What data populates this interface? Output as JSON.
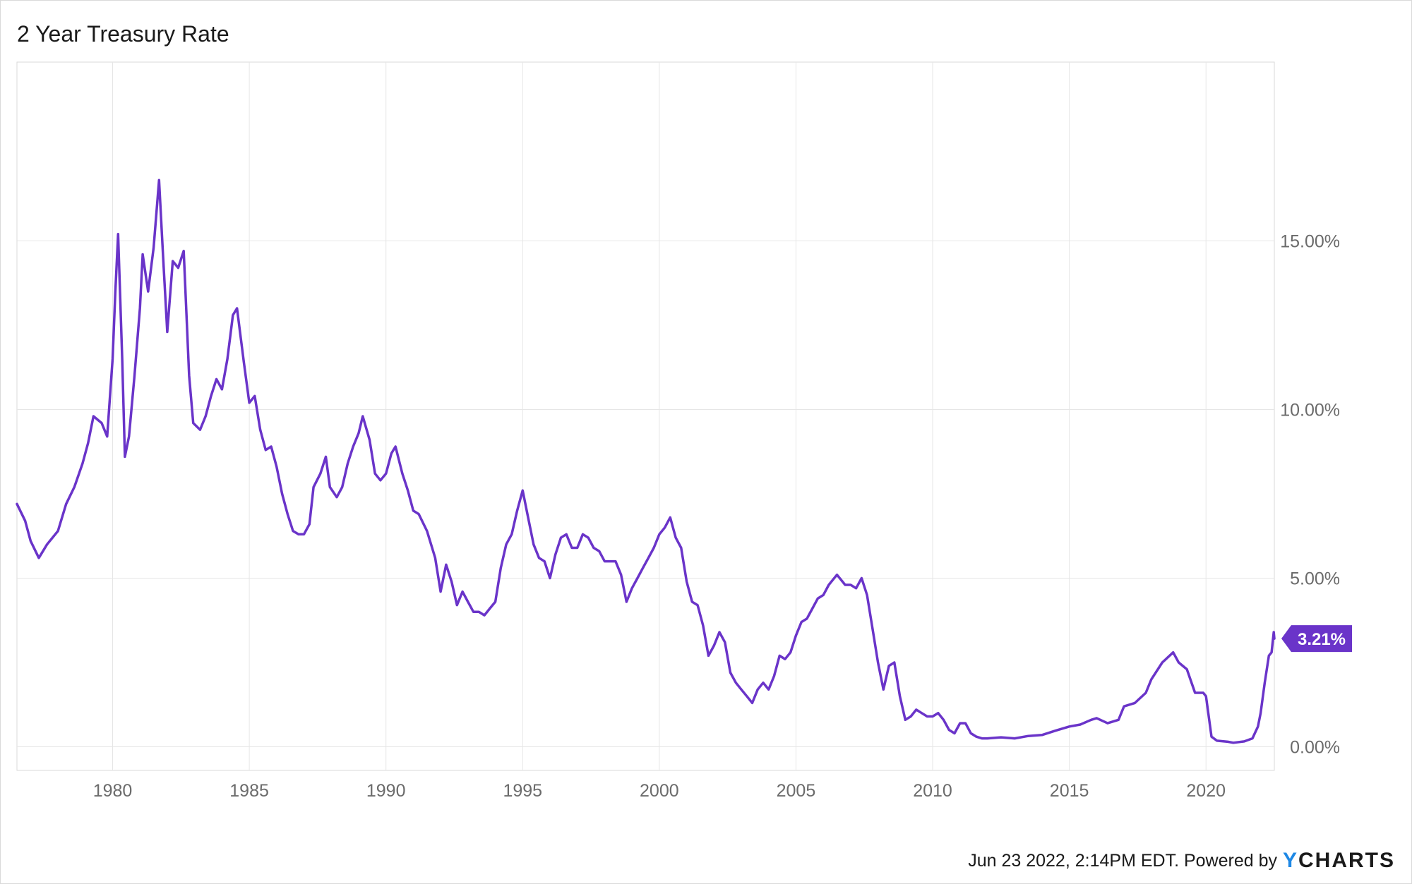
{
  "title": "2 Year Treasury Rate",
  "footer": {
    "text": "Jun 23 2022, 2:14PM EDT. Powered by",
    "logo_y": "Y",
    "logo_rest": "CHARTS"
  },
  "colors": {
    "line": "#6a34c9",
    "flag": "#6a34c9",
    "grid": "#e6e6e6"
  },
  "chart_data": {
    "type": "line",
    "title": "2 Year Treasury Rate",
    "xlabel": "",
    "ylabel": "",
    "xlim": [
      1976.5,
      2022.5
    ],
    "ylim": [
      -0.7,
      20.3
    ],
    "x_ticks": [
      1980,
      1985,
      1990,
      1995,
      2000,
      2005,
      2010,
      2015,
      2020
    ],
    "x_tick_labels": [
      "1980",
      "1985",
      "1990",
      "1995",
      "2000",
      "2005",
      "2010",
      "2015",
      "2020"
    ],
    "y_ticks": [
      0,
      5,
      10,
      15
    ],
    "y_tick_labels": [
      "0.00%",
      "5.00%",
      "10.00%",
      "15.00%"
    ],
    "grid": true,
    "last_value_label": "3.21%",
    "series": [
      {
        "values": [
          [
            1976.5,
            7.2
          ],
          [
            1976.8,
            6.7
          ],
          [
            1977.0,
            6.1
          ],
          [
            1977.3,
            5.6
          ],
          [
            1977.6,
            6.0
          ],
          [
            1978.0,
            6.4
          ],
          [
            1978.3,
            7.2
          ],
          [
            1978.6,
            7.7
          ],
          [
            1978.9,
            8.4
          ],
          [
            1979.1,
            9.0
          ],
          [
            1979.3,
            9.8
          ],
          [
            1979.6,
            9.6
          ],
          [
            1979.8,
            9.2
          ],
          [
            1980.0,
            11.5
          ],
          [
            1980.1,
            13.5
          ],
          [
            1980.2,
            15.2
          ],
          [
            1980.35,
            11.5
          ],
          [
            1980.45,
            8.6
          ],
          [
            1980.6,
            9.2
          ],
          [
            1980.8,
            11.0
          ],
          [
            1981.0,
            13.0
          ],
          [
            1981.1,
            14.6
          ],
          [
            1981.3,
            13.5
          ],
          [
            1981.5,
            14.8
          ],
          [
            1981.7,
            16.8
          ],
          [
            1981.85,
            14.5
          ],
          [
            1982.0,
            12.3
          ],
          [
            1982.2,
            14.4
          ],
          [
            1982.4,
            14.2
          ],
          [
            1982.6,
            14.7
          ],
          [
            1982.8,
            11.0
          ],
          [
            1982.95,
            9.6
          ],
          [
            1983.2,
            9.4
          ],
          [
            1983.4,
            9.8
          ],
          [
            1983.6,
            10.4
          ],
          [
            1983.8,
            10.9
          ],
          [
            1984.0,
            10.6
          ],
          [
            1984.2,
            11.5
          ],
          [
            1984.4,
            12.8
          ],
          [
            1984.55,
            13.0
          ],
          [
            1984.8,
            11.4
          ],
          [
            1985.0,
            10.2
          ],
          [
            1985.2,
            10.4
          ],
          [
            1985.4,
            9.4
          ],
          [
            1985.6,
            8.8
          ],
          [
            1985.8,
            8.9
          ],
          [
            1986.0,
            8.3
          ],
          [
            1986.2,
            7.5
          ],
          [
            1986.4,
            6.9
          ],
          [
            1986.6,
            6.4
          ],
          [
            1986.8,
            6.3
          ],
          [
            1987.0,
            6.3
          ],
          [
            1987.2,
            6.6
          ],
          [
            1987.35,
            7.7
          ],
          [
            1987.6,
            8.1
          ],
          [
            1987.8,
            8.6
          ],
          [
            1987.95,
            7.7
          ],
          [
            1988.2,
            7.4
          ],
          [
            1988.4,
            7.7
          ],
          [
            1988.6,
            8.4
          ],
          [
            1988.8,
            8.9
          ],
          [
            1989.0,
            9.3
          ],
          [
            1989.15,
            9.8
          ],
          [
            1989.4,
            9.1
          ],
          [
            1989.6,
            8.1
          ],
          [
            1989.8,
            7.9
          ],
          [
            1990.0,
            8.1
          ],
          [
            1990.2,
            8.7
          ],
          [
            1990.35,
            8.9
          ],
          [
            1990.6,
            8.1
          ],
          [
            1990.8,
            7.6
          ],
          [
            1991.0,
            7.0
          ],
          [
            1991.2,
            6.9
          ],
          [
            1991.5,
            6.4
          ],
          [
            1991.8,
            5.6
          ],
          [
            1992.0,
            4.6
          ],
          [
            1992.2,
            5.4
          ],
          [
            1992.4,
            4.9
          ],
          [
            1992.6,
            4.2
          ],
          [
            1992.8,
            4.6
          ],
          [
            1993.0,
            4.3
          ],
          [
            1993.2,
            4.0
          ],
          [
            1993.4,
            4.0
          ],
          [
            1993.6,
            3.9
          ],
          [
            1993.8,
            4.1
          ],
          [
            1994.0,
            4.3
          ],
          [
            1994.2,
            5.3
          ],
          [
            1994.4,
            6.0
          ],
          [
            1994.6,
            6.3
          ],
          [
            1994.8,
            7.0
          ],
          [
            1995.0,
            7.6
          ],
          [
            1995.2,
            6.8
          ],
          [
            1995.4,
            6.0
          ],
          [
            1995.6,
            5.6
          ],
          [
            1995.8,
            5.5
          ],
          [
            1996.0,
            5.0
          ],
          [
            1996.2,
            5.7
          ],
          [
            1996.4,
            6.2
          ],
          [
            1996.6,
            6.3
          ],
          [
            1996.8,
            5.9
          ],
          [
            1997.0,
            5.9
          ],
          [
            1997.2,
            6.3
          ],
          [
            1997.4,
            6.2
          ],
          [
            1997.6,
            5.9
          ],
          [
            1997.8,
            5.8
          ],
          [
            1998.0,
            5.5
          ],
          [
            1998.2,
            5.5
          ],
          [
            1998.4,
            5.5
          ],
          [
            1998.6,
            5.1
          ],
          [
            1998.8,
            4.3
          ],
          [
            1999.0,
            4.7
          ],
          [
            1999.2,
            5.0
          ],
          [
            1999.4,
            5.3
          ],
          [
            1999.6,
            5.6
          ],
          [
            1999.8,
            5.9
          ],
          [
            2000.0,
            6.3
          ],
          [
            2000.2,
            6.5
          ],
          [
            2000.4,
            6.8
          ],
          [
            2000.6,
            6.2
          ],
          [
            2000.8,
            5.9
          ],
          [
            2001.0,
            4.9
          ],
          [
            2001.2,
            4.3
          ],
          [
            2001.4,
            4.2
          ],
          [
            2001.6,
            3.6
          ],
          [
            2001.8,
            2.7
          ],
          [
            2002.0,
            3.0
          ],
          [
            2002.2,
            3.4
          ],
          [
            2002.4,
            3.1
          ],
          [
            2002.6,
            2.2
          ],
          [
            2002.8,
            1.9
          ],
          [
            2003.0,
            1.7
          ],
          [
            2003.2,
            1.5
          ],
          [
            2003.4,
            1.3
          ],
          [
            2003.6,
            1.7
          ],
          [
            2003.8,
            1.9
          ],
          [
            2004.0,
            1.7
          ],
          [
            2004.2,
            2.1
          ],
          [
            2004.4,
            2.7
          ],
          [
            2004.6,
            2.6
          ],
          [
            2004.8,
            2.8
          ],
          [
            2005.0,
            3.3
          ],
          [
            2005.2,
            3.7
          ],
          [
            2005.4,
            3.8
          ],
          [
            2005.6,
            4.1
          ],
          [
            2005.8,
            4.4
          ],
          [
            2006.0,
            4.5
          ],
          [
            2006.2,
            4.8
          ],
          [
            2006.5,
            5.1
          ],
          [
            2006.8,
            4.8
          ],
          [
            2007.0,
            4.8
          ],
          [
            2007.2,
            4.7
          ],
          [
            2007.4,
            5.0
          ],
          [
            2007.6,
            4.5
          ],
          [
            2007.8,
            3.5
          ],
          [
            2008.0,
            2.5
          ],
          [
            2008.2,
            1.7
          ],
          [
            2008.4,
            2.4
          ],
          [
            2008.6,
            2.5
          ],
          [
            2008.8,
            1.5
          ],
          [
            2009.0,
            0.8
          ],
          [
            2009.2,
            0.9
          ],
          [
            2009.4,
            1.1
          ],
          [
            2009.6,
            1.0
          ],
          [
            2009.8,
            0.9
          ],
          [
            2010.0,
            0.9
          ],
          [
            2010.2,
            1.0
          ],
          [
            2010.4,
            0.8
          ],
          [
            2010.6,
            0.5
          ],
          [
            2010.8,
            0.4
          ],
          [
            2011.0,
            0.7
          ],
          [
            2011.2,
            0.7
          ],
          [
            2011.4,
            0.4
          ],
          [
            2011.6,
            0.3
          ],
          [
            2011.8,
            0.25
          ],
          [
            2012.0,
            0.25
          ],
          [
            2012.5,
            0.28
          ],
          [
            2013.0,
            0.25
          ],
          [
            2013.5,
            0.32
          ],
          [
            2014.0,
            0.35
          ],
          [
            2014.5,
            0.48
          ],
          [
            2015.0,
            0.6
          ],
          [
            2015.4,
            0.66
          ],
          [
            2015.8,
            0.8
          ],
          [
            2016.0,
            0.85
          ],
          [
            2016.4,
            0.7
          ],
          [
            2016.8,
            0.8
          ],
          [
            2017.0,
            1.2
          ],
          [
            2017.4,
            1.3
          ],
          [
            2017.8,
            1.6
          ],
          [
            2018.0,
            2.0
          ],
          [
            2018.4,
            2.5
          ],
          [
            2018.8,
            2.8
          ],
          [
            2019.0,
            2.5
          ],
          [
            2019.3,
            2.3
          ],
          [
            2019.6,
            1.6
          ],
          [
            2019.9,
            1.6
          ],
          [
            2020.0,
            1.5
          ],
          [
            2020.2,
            0.3
          ],
          [
            2020.4,
            0.18
          ],
          [
            2020.8,
            0.15
          ],
          [
            2021.0,
            0.12
          ],
          [
            2021.4,
            0.16
          ],
          [
            2021.7,
            0.25
          ],
          [
            2021.9,
            0.6
          ],
          [
            2022.0,
            1.0
          ],
          [
            2022.15,
            1.9
          ],
          [
            2022.3,
            2.7
          ],
          [
            2022.4,
            2.8
          ],
          [
            2022.48,
            3.4
          ],
          [
            2022.5,
            3.21
          ]
        ]
      }
    ]
  }
}
